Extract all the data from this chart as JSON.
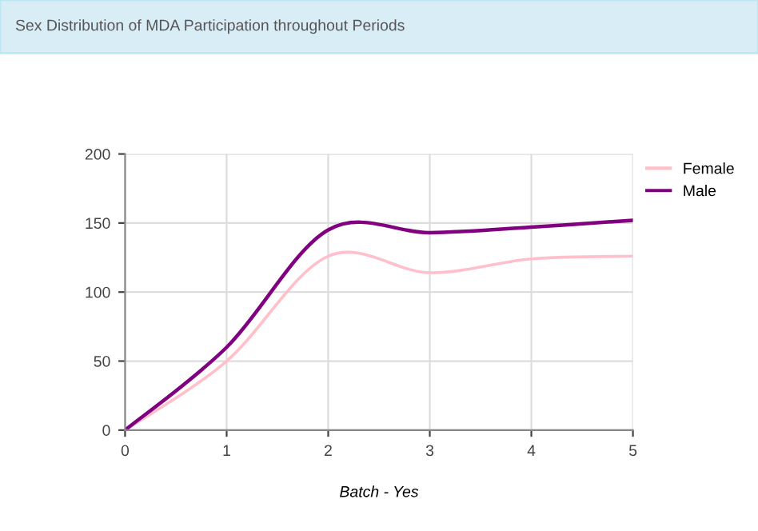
{
  "chart_data": {
    "type": "line",
    "title": "Sex Distribution of MDA Participation throughout Periods",
    "xlabel": "Batch - Yes",
    "x": [
      0,
      1,
      2,
      3,
      4,
      5
    ],
    "series": [
      {
        "name": "Female",
        "color": "#ffc0cb",
        "values": [
          0,
          50,
          126,
          114,
          124,
          126
        ]
      },
      {
        "name": "Male",
        "color": "#800080",
        "values": [
          0,
          60,
          145,
          143,
          147,
          152
        ]
      }
    ],
    "xlim": [
      0,
      5
    ],
    "xticks": [
      0,
      1,
      2,
      3,
      4,
      5
    ],
    "ylim": [
      0,
      200
    ],
    "yticks": [
      0,
      50,
      100,
      150,
      200
    ],
    "grid": true,
    "legend": "top right",
    "marker": "none",
    "line_style": "solid"
  }
}
